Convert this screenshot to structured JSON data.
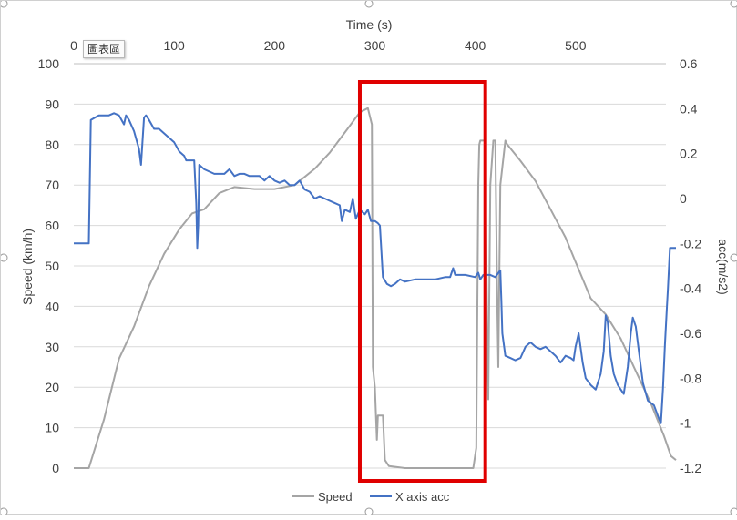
{
  "chart_data": {
    "type": "line",
    "title": "",
    "x_axis": {
      "label": "Time (s)",
      "position": "top",
      "range": [
        0,
        590
      ],
      "ticks": [
        0,
        100,
        200,
        300,
        400,
        500
      ]
    },
    "y_axis_left": {
      "label": "Speed (km/h)",
      "range": [
        0,
        100
      ],
      "ticks": [
        0,
        10,
        20,
        30,
        40,
        50,
        60,
        70,
        80,
        90,
        100
      ]
    },
    "y_axis_right": {
      "label": "acc(m/s2)",
      "range": [
        -1.2,
        0.6
      ],
      "ticks": [
        "0.6",
        "0.4",
        "0.2",
        "0",
        "-0.2",
        "-0.4",
        "-0.6",
        "-0.8",
        "-1",
        "-1.2"
      ]
    },
    "grid": "horizontal major gridlines",
    "legend": {
      "placement": "bottom"
    },
    "series": [
      {
        "name": "Speed",
        "axis": "left",
        "color": "#a5a5a5",
        "points": [
          [
            0,
            0
          ],
          [
            15,
            0
          ],
          [
            30,
            12
          ],
          [
            45,
            27
          ],
          [
            60,
            35
          ],
          [
            75,
            45
          ],
          [
            90,
            53
          ],
          [
            105,
            59
          ],
          [
            118,
            63
          ],
          [
            130,
            64
          ],
          [
            145,
            68
          ],
          [
            160,
            69.5
          ],
          [
            180,
            69
          ],
          [
            200,
            69
          ],
          [
            220,
            70
          ],
          [
            240,
            74
          ],
          [
            255,
            78
          ],
          [
            270,
            83
          ],
          [
            285,
            88
          ],
          [
            293,
            89
          ],
          [
            297,
            85
          ],
          [
            298,
            25
          ],
          [
            300,
            20
          ],
          [
            302,
            7
          ],
          [
            303,
            13
          ],
          [
            308,
            13
          ],
          [
            310,
            2
          ],
          [
            314,
            0.5
          ],
          [
            330,
            0
          ],
          [
            370,
            0
          ],
          [
            398,
            0
          ],
          [
            401,
            5
          ],
          [
            403,
            70
          ],
          [
            404,
            80
          ],
          [
            405,
            81
          ],
          [
            410,
            81
          ],
          [
            412,
            30
          ],
          [
            413,
            17
          ],
          [
            415,
            70
          ],
          [
            418,
            81
          ],
          [
            420,
            81
          ],
          [
            422,
            40
          ],
          [
            423,
            25
          ],
          [
            425,
            70
          ],
          [
            430,
            81
          ],
          [
            432,
            80
          ],
          [
            445,
            76
          ],
          [
            460,
            71
          ],
          [
            475,
            64
          ],
          [
            490,
            57
          ],
          [
            500,
            51
          ],
          [
            515,
            42
          ],
          [
            530,
            38
          ],
          [
            545,
            32
          ],
          [
            560,
            24
          ],
          [
            575,
            16
          ],
          [
            588,
            8
          ],
          [
            595,
            3
          ],
          [
            600,
            2
          ]
        ]
      },
      {
        "name": "X axis acc",
        "axis": "right",
        "color": "#4472c4",
        "points": [
          [
            0,
            -0.2
          ],
          [
            15,
            -0.2
          ],
          [
            17,
            0.35
          ],
          [
            25,
            0.37
          ],
          [
            35,
            0.37
          ],
          [
            40,
            0.38
          ],
          [
            45,
            0.37
          ],
          [
            50,
            0.33
          ],
          [
            52,
            0.37
          ],
          [
            55,
            0.35
          ],
          [
            60,
            0.3
          ],
          [
            65,
            0.22
          ],
          [
            67,
            0.15
          ],
          [
            70,
            0.36
          ],
          [
            72,
            0.37
          ],
          [
            75,
            0.35
          ],
          [
            80,
            0.31
          ],
          [
            85,
            0.31
          ],
          [
            90,
            0.29
          ],
          [
            95,
            0.27
          ],
          [
            100,
            0.25
          ],
          [
            105,
            0.21
          ],
          [
            110,
            0.19
          ],
          [
            112,
            0.17
          ],
          [
            120,
            0.17
          ],
          [
            122,
            -0.02
          ],
          [
            123,
            -0.22
          ],
          [
            124,
            -0.12
          ],
          [
            125,
            0.15
          ],
          [
            130,
            0.13
          ],
          [
            135,
            0.12
          ],
          [
            140,
            0.11
          ],
          [
            145,
            0.11
          ],
          [
            150,
            0.11
          ],
          [
            155,
            0.13
          ],
          [
            160,
            0.1
          ],
          [
            165,
            0.11
          ],
          [
            170,
            0.11
          ],
          [
            175,
            0.1
          ],
          [
            180,
            0.1
          ],
          [
            185,
            0.1
          ],
          [
            190,
            0.08
          ],
          [
            195,
            0.1
          ],
          [
            200,
            0.08
          ],
          [
            205,
            0.07
          ],
          [
            210,
            0.08
          ],
          [
            215,
            0.06
          ],
          [
            220,
            0.06
          ],
          [
            225,
            0.08
          ],
          [
            230,
            0.04
          ],
          [
            235,
            0.03
          ],
          [
            240,
            0.0
          ],
          [
            245,
            0.01
          ],
          [
            250,
            0.0
          ],
          [
            255,
            -0.01
          ],
          [
            260,
            -0.02
          ],
          [
            265,
            -0.03
          ],
          [
            267,
            -0.1
          ],
          [
            270,
            -0.05
          ],
          [
            275,
            -0.06
          ],
          [
            278,
            0.0
          ],
          [
            281,
            -0.09
          ],
          [
            285,
            -0.05
          ],
          [
            290,
            -0.07
          ],
          [
            293,
            -0.05
          ],
          [
            296,
            -0.1
          ],
          [
            300,
            -0.1
          ],
          [
            303,
            -0.11
          ],
          [
            305,
            -0.12
          ],
          [
            308,
            -0.35
          ],
          [
            312,
            -0.38
          ],
          [
            316,
            -0.39
          ],
          [
            320,
            -0.38
          ],
          [
            325,
            -0.36
          ],
          [
            330,
            -0.37
          ],
          [
            340,
            -0.36
          ],
          [
            350,
            -0.36
          ],
          [
            360,
            -0.36
          ],
          [
            370,
            -0.35
          ],
          [
            375,
            -0.35
          ],
          [
            378,
            -0.31
          ],
          [
            380,
            -0.34
          ],
          [
            390,
            -0.34
          ],
          [
            400,
            -0.35
          ],
          [
            403,
            -0.33
          ],
          [
            405,
            -0.36
          ],
          [
            408,
            -0.34
          ],
          [
            415,
            -0.34
          ],
          [
            420,
            -0.35
          ],
          [
            425,
            -0.32
          ],
          [
            426,
            -0.45
          ],
          [
            427,
            -0.6
          ],
          [
            430,
            -0.7
          ],
          [
            435,
            -0.71
          ],
          [
            440,
            -0.72
          ],
          [
            445,
            -0.71
          ],
          [
            450,
            -0.66
          ],
          [
            455,
            -0.64
          ],
          [
            460,
            -0.66
          ],
          [
            465,
            -0.67
          ],
          [
            470,
            -0.66
          ],
          [
            475,
            -0.68
          ],
          [
            480,
            -0.7
          ],
          [
            485,
            -0.73
          ],
          [
            490,
            -0.7
          ],
          [
            495,
            -0.71
          ],
          [
            498,
            -0.72
          ],
          [
            500,
            -0.66
          ],
          [
            503,
            -0.6
          ],
          [
            507,
            -0.73
          ],
          [
            510,
            -0.8
          ],
          [
            515,
            -0.83
          ],
          [
            520,
            -0.85
          ],
          [
            525,
            -0.78
          ],
          [
            528,
            -0.68
          ],
          [
            530,
            -0.52
          ],
          [
            532,
            -0.55
          ],
          [
            535,
            -0.7
          ],
          [
            538,
            -0.78
          ],
          [
            542,
            -0.83
          ],
          [
            548,
            -0.87
          ],
          [
            552,
            -0.75
          ],
          [
            555,
            -0.6
          ],
          [
            557,
            -0.53
          ],
          [
            560,
            -0.57
          ],
          [
            563,
            -0.68
          ],
          [
            567,
            -0.82
          ],
          [
            572,
            -0.9
          ],
          [
            578,
            -0.92
          ],
          [
            583,
            -0.98
          ],
          [
            585,
            -1.0
          ],
          [
            587,
            -0.85
          ],
          [
            589,
            -0.65
          ],
          [
            591,
            -0.48
          ],
          [
            592,
            -0.4
          ],
          [
            594,
            -0.22
          ],
          [
            597,
            -0.22
          ],
          [
            600,
            -0.22
          ]
        ]
      }
    ],
    "annotation": {
      "type": "rectangle",
      "color": "#e00000",
      "x_range": [
        285,
        410
      ]
    }
  },
  "ui": {
    "chip_label": "圖表區"
  }
}
